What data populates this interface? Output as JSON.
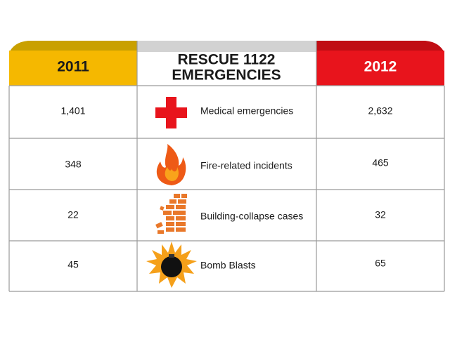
{
  "header": {
    "left": "2011",
    "title_lines": [
      "RESCUE 1122",
      "EMERGENCIES"
    ],
    "right": "2012"
  },
  "table": {
    "rows": [
      {
        "left": "1,401",
        "label": "Medical emergencies",
        "right": "2,632"
      },
      {
        "left": "348",
        "label": "Fire-related incidents",
        "right": "465"
      },
      {
        "left": "22",
        "label": "Building-collapse cases",
        "right": "32"
      },
      {
        "left": "45",
        "label": "Bomb Blasts",
        "right": "65"
      }
    ]
  }
}
